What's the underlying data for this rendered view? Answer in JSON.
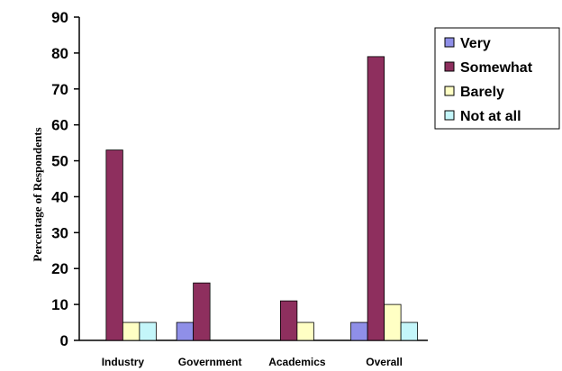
{
  "chart_data": {
    "type": "bar",
    "categories": [
      "Industry",
      "Government",
      "Academics",
      "Overall"
    ],
    "series": [
      {
        "name": "Very",
        "color": "#8f8fe8",
        "values": [
          0,
          5,
          0,
          5
        ]
      },
      {
        "name": "Somewhat",
        "color": "#8e2f5e",
        "values": [
          53,
          16,
          11,
          79
        ]
      },
      {
        "name": "Barely",
        "color": "#ffffc4",
        "values": [
          5,
          0,
          5,
          10
        ]
      },
      {
        "name": "Not at all",
        "color": "#c4f6fa",
        "values": [
          5,
          0,
          0,
          5
        ]
      }
    ],
    "xlabel": "",
    "ylabel": "Percentage of Respondents",
    "ylim": [
      0,
      90
    ],
    "yticks": [
      0,
      10,
      20,
      30,
      40,
      50,
      60,
      70,
      80,
      90
    ],
    "grid": false,
    "legend_position": "top-right"
  }
}
